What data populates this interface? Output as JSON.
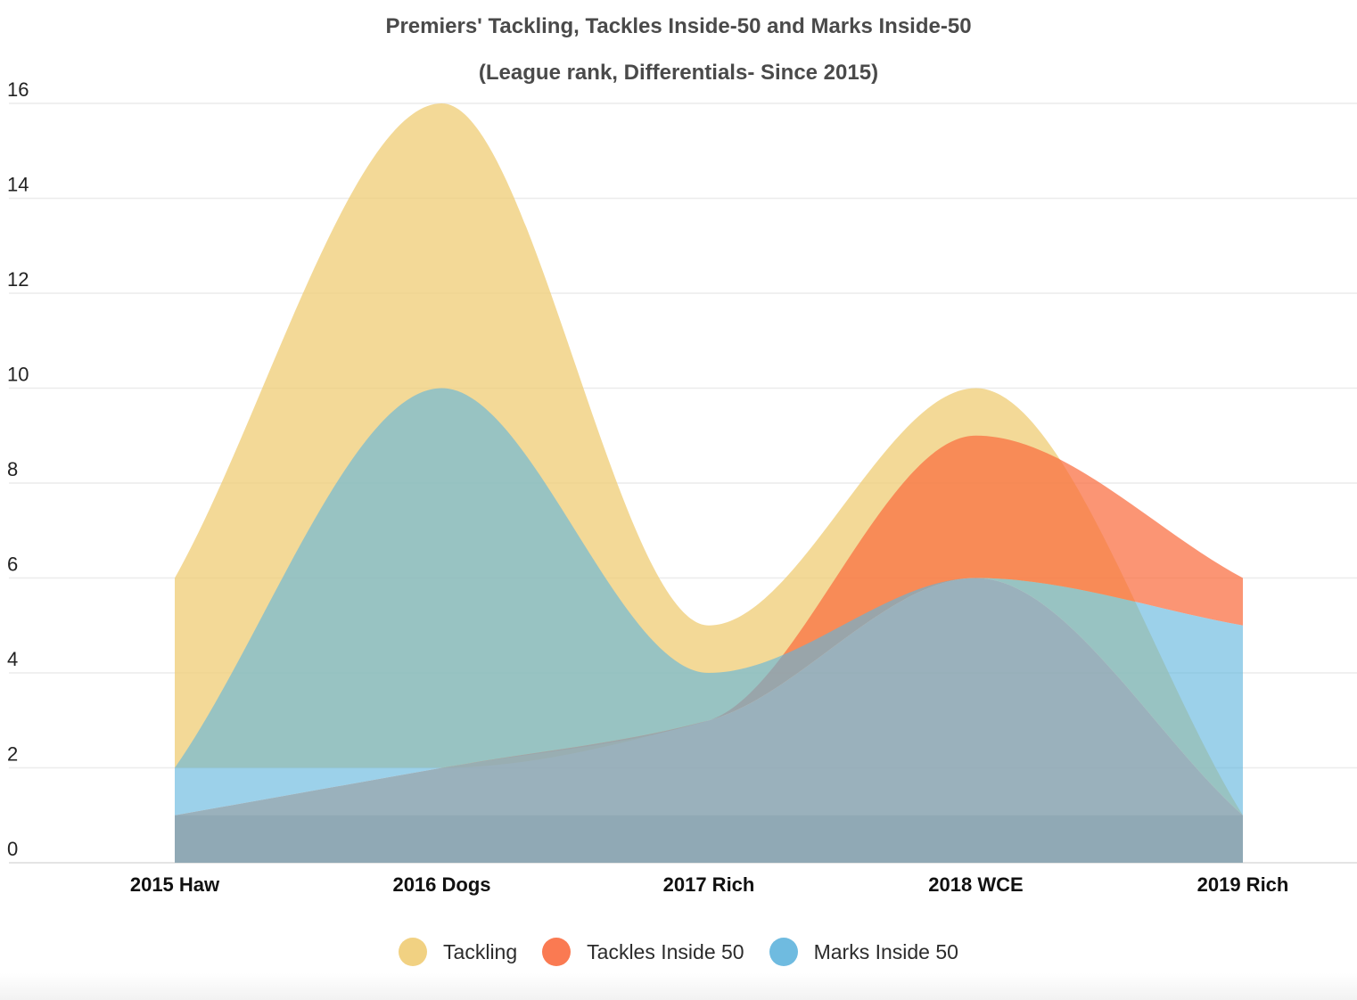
{
  "chart_data": {
    "type": "area",
    "title": "Premiers' Tackling, Tackles Inside-50 and Marks Inside-50",
    "subtitle": "(League rank, Differentials- Since 2015)",
    "xlabel": "",
    "ylabel": "",
    "categories": [
      "2015 Haw",
      "2016 Dogs",
      "2017 Rich",
      "2018 WCE",
      "2019 Rich"
    ],
    "ylim": [
      0,
      16
    ],
    "yticks": [
      0,
      2,
      4,
      6,
      8,
      10,
      12,
      14,
      16
    ],
    "grid": true,
    "legend_position": "bottom-center",
    "series": [
      {
        "name": "Tackling",
        "color": "#efcc74",
        "high": [
          6,
          16,
          5,
          10,
          1
        ],
        "low": [
          2,
          2,
          3,
          6,
          1
        ]
      },
      {
        "name": "Tackles Inside 50",
        "color": "#f96c3f",
        "high": [
          1,
          2,
          3,
          9,
          6
        ],
        "low": [
          1,
          2,
          3,
          6,
          5
        ]
      },
      {
        "name": "Marks Inside 50",
        "color": "#5fb4dd",
        "high": [
          2,
          10,
          4,
          6,
          5
        ],
        "low": [
          1,
          2,
          3,
          6,
          1
        ]
      }
    ]
  }
}
